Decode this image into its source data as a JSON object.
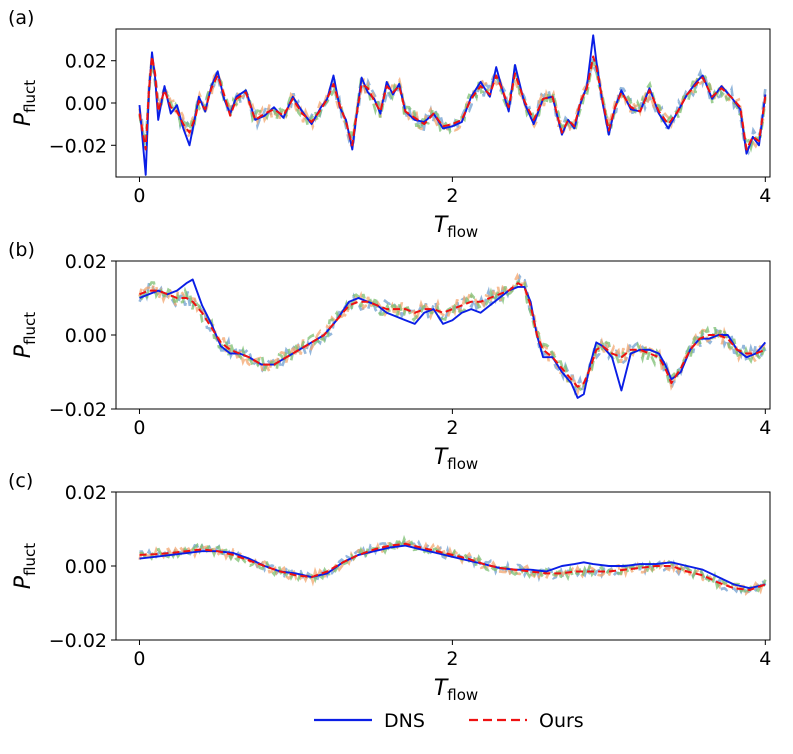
{
  "legend": [
    {
      "name": "DNS",
      "color": "#0a1ee6",
      "style": "solid"
    },
    {
      "name": "Ours",
      "color": "#ee1111",
      "style": "dashed"
    }
  ],
  "ensemble_colors": [
    "#6f9fd0",
    "#f3a56e",
    "#7cbf72"
  ],
  "chart_data": [
    {
      "type": "line",
      "panel": "(a)",
      "xlabel": "T",
      "xlabel_sub": "flow",
      "ylabel": "P",
      "ylabel_sub": "fluct",
      "xlim": [
        -0.15,
        4.03
      ],
      "ylim": [
        -0.035,
        0.035
      ],
      "xticks": [
        {
          "v": 0,
          "label": "0"
        },
        {
          "v": 2,
          "label": "2"
        },
        {
          "v": 4,
          "label": "4"
        }
      ],
      "yticks": [
        {
          "v": 0.02,
          "label": "0.02"
        },
        {
          "v": 0.0,
          "label": "0.00"
        },
        {
          "v": -0.02,
          "label": "−0.02"
        }
      ],
      "x": [
        0.0,
        0.04,
        0.06,
        0.08,
        0.1,
        0.12,
        0.16,
        0.2,
        0.24,
        0.28,
        0.32,
        0.36,
        0.38,
        0.42,
        0.46,
        0.5,
        0.54,
        0.58,
        0.62,
        0.68,
        0.74,
        0.8,
        0.86,
        0.92,
        0.98,
        1.04,
        1.1,
        1.16,
        1.2,
        1.24,
        1.28,
        1.32,
        1.36,
        1.38,
        1.42,
        1.46,
        1.5,
        1.54,
        1.58,
        1.62,
        1.66,
        1.7,
        1.76,
        1.82,
        1.88,
        1.94,
        2.0,
        2.06,
        2.12,
        2.18,
        2.24,
        2.28,
        2.32,
        2.36,
        2.4,
        2.46,
        2.52,
        2.58,
        2.64,
        2.7,
        2.74,
        2.78,
        2.82,
        2.86,
        2.9,
        2.92,
        2.96,
        3.0,
        3.04,
        3.08,
        3.14,
        3.2,
        3.26,
        3.32,
        3.38,
        3.44,
        3.5,
        3.56,
        3.6,
        3.66,
        3.72,
        3.78,
        3.84,
        3.88,
        3.92,
        3.96,
        4.0
      ],
      "series": [
        {
          "name": "DNS",
          "values": [
            -0.001,
            -0.034,
            0.005,
            0.024,
            0.012,
            -0.008,
            0.008,
            -0.005,
            -0.001,
            -0.012,
            -0.02,
            -0.005,
            0.003,
            -0.004,
            0.008,
            0.015,
            0.002,
            -0.005,
            0.003,
            0.006,
            -0.008,
            -0.006,
            -0.002,
            -0.007,
            0.003,
            -0.004,
            -0.01,
            -0.002,
            0.002,
            0.013,
            -0.002,
            -0.008,
            -0.022,
            -0.01,
            0.012,
            0.005,
            0.002,
            -0.005,
            0.01,
            0.004,
            0.009,
            -0.004,
            -0.008,
            -0.009,
            -0.005,
            -0.012,
            -0.011,
            -0.009,
            0.003,
            0.01,
            0.003,
            0.017,
            0.006,
            -0.004,
            0.018,
            0.0,
            -0.01,
            0.002,
            0.003,
            -0.015,
            -0.008,
            -0.012,
            0.0,
            0.008,
            0.032,
            0.02,
            0.0,
            -0.015,
            -0.002,
            0.006,
            -0.003,
            -0.004,
            0.007,
            -0.005,
            -0.012,
            -0.004,
            0.004,
            0.01,
            0.013,
            0.002,
            0.008,
            0.003,
            -0.003,
            -0.024,
            -0.016,
            -0.02,
            0.004
          ]
        },
        {
          "name": "Ours",
          "values": [
            -0.005,
            -0.022,
            0.006,
            0.022,
            0.014,
            -0.004,
            0.006,
            -0.002,
            -0.004,
            -0.01,
            -0.014,
            -0.006,
            0.001,
            -0.003,
            0.007,
            0.013,
            0.004,
            -0.006,
            0.002,
            0.005,
            -0.008,
            -0.005,
            -0.003,
            -0.006,
            0.002,
            -0.005,
            -0.009,
            -0.003,
            0.002,
            0.009,
            -0.001,
            -0.009,
            -0.02,
            -0.009,
            0.009,
            0.007,
            0.001,
            -0.004,
            0.008,
            0.005,
            0.008,
            -0.004,
            -0.007,
            -0.01,
            -0.005,
            -0.011,
            -0.01,
            -0.008,
            0.002,
            0.008,
            0.004,
            0.013,
            0.006,
            -0.002,
            0.014,
            0.001,
            -0.008,
            0.002,
            0.003,
            -0.014,
            -0.008,
            -0.011,
            0.001,
            0.007,
            0.022,
            0.017,
            0.001,
            -0.013,
            -0.002,
            0.005,
            -0.002,
            -0.004,
            0.006,
            -0.004,
            -0.01,
            -0.004,
            0.004,
            0.009,
            0.012,
            0.003,
            0.007,
            0.003,
            -0.002,
            -0.022,
            -0.016,
            -0.018,
            0.003
          ]
        }
      ]
    },
    {
      "type": "line",
      "panel": "(b)",
      "xlabel": "T",
      "xlabel_sub": "flow",
      "ylabel": "P",
      "ylabel_sub": "fluct",
      "xlim": [
        -0.15,
        4.03
      ],
      "ylim": [
        -0.02,
        0.02
      ],
      "xticks": [
        {
          "v": 0,
          "label": "0"
        },
        {
          "v": 2,
          "label": "2"
        },
        {
          "v": 4,
          "label": "4"
        }
      ],
      "yticks": [
        {
          "v": 0.02,
          "label": "0.02"
        },
        {
          "v": 0.0,
          "label": "0.00"
        },
        {
          "v": -0.02,
          "label": "−0.02"
        }
      ],
      "x": [
        0.0,
        0.06,
        0.12,
        0.18,
        0.24,
        0.3,
        0.34,
        0.4,
        0.46,
        0.52,
        0.58,
        0.64,
        0.7,
        0.78,
        0.86,
        0.94,
        1.02,
        1.1,
        1.18,
        1.26,
        1.34,
        1.4,
        1.46,
        1.52,
        1.58,
        1.64,
        1.7,
        1.76,
        1.82,
        1.88,
        1.94,
        2.0,
        2.06,
        2.12,
        2.18,
        2.24,
        2.3,
        2.36,
        2.42,
        2.46,
        2.5,
        2.54,
        2.58,
        2.64,
        2.7,
        2.76,
        2.8,
        2.84,
        2.88,
        2.92,
        2.96,
        3.02,
        3.08,
        3.14,
        3.2,
        3.26,
        3.32,
        3.36,
        3.4,
        3.46,
        3.52,
        3.58,
        3.64,
        3.7,
        3.76,
        3.82,
        3.88,
        3.94,
        4.0
      ],
      "series": [
        {
          "name": "DNS",
          "values": [
            0.01,
            0.011,
            0.012,
            0.011,
            0.012,
            0.014,
            0.015,
            0.008,
            0.003,
            -0.003,
            -0.005,
            -0.005,
            -0.006,
            -0.008,
            -0.008,
            -0.006,
            -0.004,
            -0.002,
            0.0,
            0.004,
            0.009,
            0.01,
            0.009,
            0.008,
            0.006,
            0.005,
            0.004,
            0.003,
            0.006,
            0.007,
            0.003,
            0.004,
            0.006,
            0.007,
            0.006,
            0.008,
            0.01,
            0.012,
            0.013,
            0.013,
            0.009,
            0.0,
            -0.006,
            -0.006,
            -0.01,
            -0.013,
            -0.017,
            -0.016,
            -0.008,
            -0.002,
            -0.003,
            -0.006,
            -0.015,
            -0.005,
            -0.004,
            -0.004,
            -0.005,
            -0.008,
            -0.012,
            -0.01,
            -0.004,
            -0.001,
            -0.001,
            0.0,
            0.0,
            -0.004,
            -0.006,
            -0.005,
            -0.002
          ]
        },
        {
          "name": "Ours",
          "values": [
            0.011,
            0.012,
            0.012,
            0.011,
            0.01,
            0.01,
            0.009,
            0.006,
            0.002,
            -0.002,
            -0.004,
            -0.005,
            -0.006,
            -0.008,
            -0.008,
            -0.006,
            -0.004,
            -0.002,
            0.0,
            0.004,
            0.008,
            0.009,
            0.009,
            0.008,
            0.007,
            0.007,
            0.007,
            0.006,
            0.007,
            0.007,
            0.006,
            0.007,
            0.008,
            0.009,
            0.009,
            0.01,
            0.011,
            0.012,
            0.014,
            0.013,
            0.008,
            0.0,
            -0.004,
            -0.006,
            -0.009,
            -0.012,
            -0.014,
            -0.013,
            -0.009,
            -0.004,
            -0.003,
            -0.005,
            -0.006,
            -0.004,
            -0.004,
            -0.005,
            -0.006,
            -0.009,
            -0.013,
            -0.009,
            -0.004,
            -0.001,
            0.0,
            0.0,
            -0.001,
            -0.004,
            -0.005,
            -0.005,
            -0.004
          ]
        }
      ]
    },
    {
      "type": "line",
      "panel": "(c)",
      "xlabel": "T",
      "xlabel_sub": "flow",
      "ylabel": "P",
      "ylabel_sub": "fluct",
      "xlim": [
        -0.15,
        4.03
      ],
      "ylim": [
        -0.02,
        0.02
      ],
      "xticks": [
        {
          "v": 0,
          "label": "0"
        },
        {
          "v": 2,
          "label": "2"
        },
        {
          "v": 4,
          "label": "4"
        }
      ],
      "yticks": [
        {
          "v": 0.02,
          "label": "0.02"
        },
        {
          "v": 0.0,
          "label": "0.00"
        },
        {
          "v": -0.02,
          "label": "−0.02"
        }
      ],
      "x": [
        0.0,
        0.1,
        0.2,
        0.3,
        0.4,
        0.5,
        0.6,
        0.7,
        0.8,
        0.9,
        1.0,
        1.1,
        1.2,
        1.3,
        1.4,
        1.5,
        1.6,
        1.7,
        1.8,
        1.9,
        2.0,
        2.1,
        2.2,
        2.3,
        2.4,
        2.5,
        2.6,
        2.7,
        2.78,
        2.84,
        2.9,
        3.0,
        3.1,
        3.2,
        3.3,
        3.4,
        3.5,
        3.6,
        3.7,
        3.8,
        3.9,
        4.0
      ],
      "series": [
        {
          "name": "DNS",
          "values": [
            0.002,
            0.0025,
            0.003,
            0.0035,
            0.004,
            0.004,
            0.0035,
            0.002,
            0.0,
            -0.0015,
            -0.002,
            -0.003,
            -0.002,
            0.001,
            0.003,
            0.004,
            0.005,
            0.0055,
            0.0045,
            0.0035,
            0.0025,
            0.0015,
            0.0005,
            -0.0005,
            -0.001,
            -0.001,
            -0.0015,
            0.0,
            0.0005,
            0.001,
            0.0005,
            0.0,
            0.0,
            0.0005,
            0.0005,
            0.001,
            0.0,
            -0.001,
            -0.003,
            -0.005,
            -0.006,
            -0.005
          ]
        },
        {
          "name": "Ours",
          "values": [
            0.003,
            0.0032,
            0.0035,
            0.004,
            0.0045,
            0.004,
            0.003,
            0.0015,
            0.0,
            -0.0015,
            -0.0025,
            -0.003,
            -0.0015,
            0.001,
            0.003,
            0.0045,
            0.0055,
            0.006,
            0.005,
            0.004,
            0.003,
            0.002,
            0.0005,
            -0.0005,
            -0.001,
            -0.0015,
            -0.002,
            -0.002,
            -0.0015,
            -0.0015,
            -0.0015,
            -0.0015,
            -0.001,
            -0.0005,
            0.0,
            0.0,
            -0.0015,
            -0.0025,
            -0.0045,
            -0.006,
            -0.0065,
            -0.005
          ]
        }
      ]
    }
  ]
}
